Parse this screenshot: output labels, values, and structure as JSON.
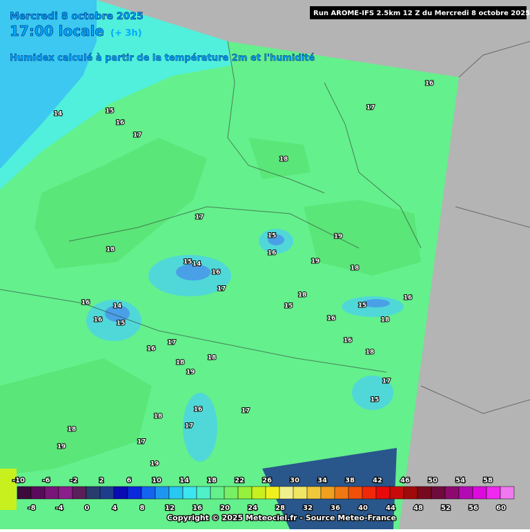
{
  "header": {
    "date": "Mercredi 8 octobre 2025",
    "time": "17:00 locale",
    "offset": "(+ 3h)",
    "subtitle": "Humidex calculé à partir de la température 2m et l'humidité",
    "run": "Run AROME-IFS 2.5km 12 Z du Mercredi 8 octobre 2025"
  },
  "contour_labels": [
    14,
    15,
    16,
    17,
    16,
    17,
    18,
    17,
    18,
    15,
    16,
    19,
    19,
    18,
    15,
    14,
    16,
    17,
    16,
    14,
    16,
    15,
    18,
    15,
    16,
    15,
    18,
    16,
    16,
    18,
    17,
    16,
    18,
    19,
    18,
    17,
    15,
    17,
    16,
    18,
    17,
    18,
    17,
    19,
    19
  ],
  "colorbar": {
    "top_labels": [
      -10,
      -6,
      -2,
      2,
      6,
      10,
      14,
      18,
      22,
      26,
      30,
      34,
      38,
      42,
      46,
      50,
      54,
      58
    ],
    "bottom_labels": [
      -8,
      -4,
      0,
      4,
      8,
      12,
      16,
      20,
      24,
      28,
      32,
      36,
      40,
      44,
      48,
      52,
      56,
      60
    ],
    "colors": [
      "#3c0a3c",
      "#5a0a5a",
      "#781478",
      "#8c1e8c",
      "#5a1e5a",
      "#283c6e",
      "#1e3c8c",
      "#0a0ab4",
      "#0a28dc",
      "#1464f0",
      "#1e96f0",
      "#28c8f0",
      "#3ce6f0",
      "#50f0c8",
      "#64f08c",
      "#78f064",
      "#96f03c",
      "#c8f01e",
      "#f0f01e",
      "#f0f08c",
      "#f0e664",
      "#f0c83c",
      "#f0a01e",
      "#f07814",
      "#f0500a",
      "#f0280a",
      "#e60a0a",
      "#c80a0a",
      "#a00a0a",
      "#780a1e",
      "#6e0a3c",
      "#8c0a6e",
      "#b40ab4",
      "#dc0adc",
      "#f028f0",
      "#f078f0"
    ]
  },
  "footer": {
    "copyright": "Copyright © 2025 Meteociel.fr - Source Meteo-France"
  }
}
